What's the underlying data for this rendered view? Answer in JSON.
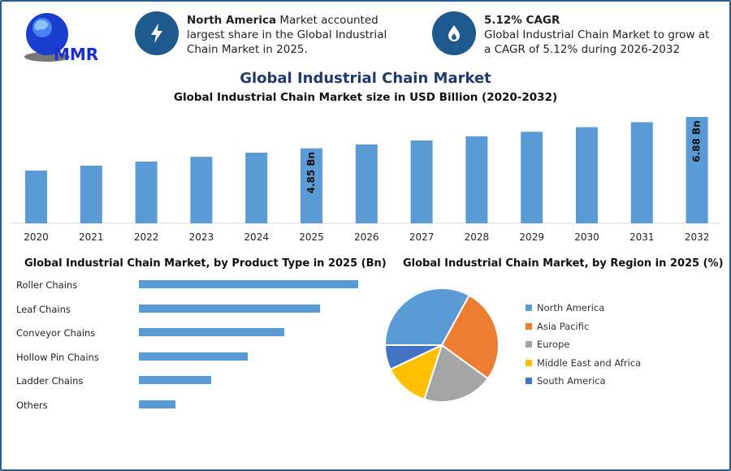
{
  "logo_text": "MMR",
  "highlights": [
    {
      "icon": "lightning-icon",
      "bold": "North America",
      "text": " Market accounted largest share in the Global Industrial Chain Market in 2025."
    },
    {
      "icon": "flame-drop-icon",
      "bold": "5.12% CAGR",
      "text": "Global Industrial Chain Market to grow at a CAGR of 5.12% during 2026-2032"
    }
  ],
  "title": "Global Industrial Chain Market",
  "subtitle": "Global Industrial Chain Market size in USD Billion (2020-2032)",
  "colors": {
    "bar": "#5b9bd5",
    "title": "#1f3a6e",
    "icon_bg": "#1f5a8e"
  },
  "chart_data": [
    {
      "type": "bar",
      "title": "Global Industrial Chain Market size in USD Billion (2020-2032)",
      "categories": [
        "2020",
        "2021",
        "2022",
        "2023",
        "2024",
        "2025",
        "2026",
        "2027",
        "2028",
        "2029",
        "2030",
        "2031",
        "2032"
      ],
      "values": [
        3.41,
        3.73,
        3.99,
        4.3,
        4.57,
        4.85,
        5.1,
        5.36,
        5.63,
        5.92,
        6.22,
        6.54,
        6.88
      ],
      "data_labels": {
        "2025": "4.85 Bn",
        "2032": "6.88 Bn"
      },
      "ylim": [
        0,
        6.88
      ],
      "grid": false
    },
    {
      "type": "bar",
      "orientation": "horizontal",
      "title": "Global Industrial Chain Market, by Product Type in 2025 (Bn)",
      "categories": [
        "Roller Chains",
        "Leaf Chains",
        "Conveyor Chains",
        "Hollow Pin Chains",
        "Ladder Chains",
        "Others"
      ],
      "values": [
        1.39,
        1.15,
        0.92,
        0.69,
        0.46,
        0.23
      ],
      "grid": false
    },
    {
      "type": "pie",
      "title": "Global Industrial Chain Market, by Region in 2025 (%)",
      "categories": [
        "North America",
        "Asia Pacific",
        "Europe",
        "Middle East and Africa",
        "South America"
      ],
      "values": [
        33,
        27,
        20,
        13,
        7
      ],
      "colors": [
        "#5b9bd5",
        "#ed7d31",
        "#a5a5a5",
        "#ffc000",
        "#4472c4"
      ],
      "legend": "right"
    }
  ]
}
